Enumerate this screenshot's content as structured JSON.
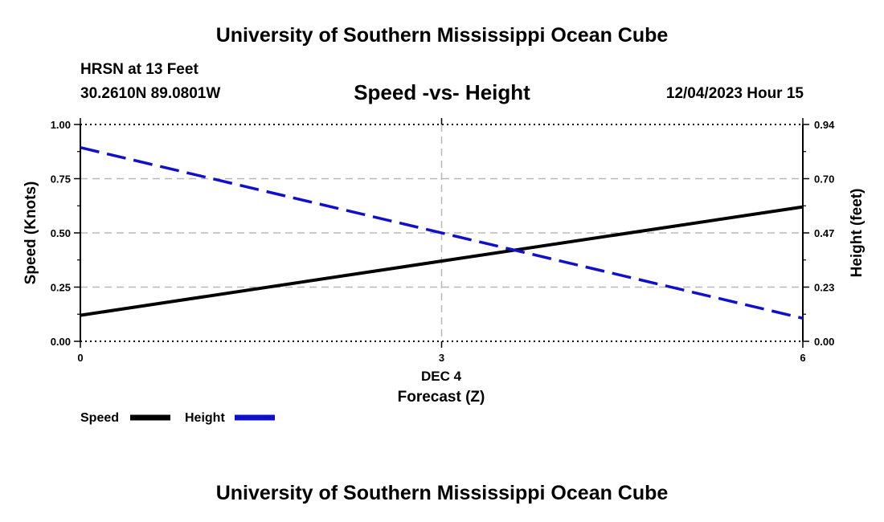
{
  "header": {
    "title": "University of Southern Mississippi Ocean Cube",
    "station": "HRSN at 13 Feet",
    "coords": "30.2610N  89.0801W",
    "chart_title": "Speed -vs- Height",
    "datetime": "12/04/2023 Hour 15"
  },
  "footer": {
    "title": "University of Southern Mississippi Ocean Cube"
  },
  "chart_data": {
    "type": "line",
    "title": "Speed -vs- Height",
    "xlabel": "Forecast (Z)",
    "xlabel_date": "DEC 4",
    "ylabel_left": "Speed (Knots)",
    "ylabel_right": "Height (feet)",
    "x_ticks": [
      0,
      3,
      6
    ],
    "xlim": [
      0,
      6
    ],
    "ylim_left": [
      0,
      1
    ],
    "ylim_right": [
      0,
      0.94
    ],
    "y_ticks_left": [
      "0.00",
      "0.25",
      "0.50",
      "0.75",
      "1.00"
    ],
    "y_ticks_right": [
      "0.00",
      "0.23",
      "0.47",
      "0.70",
      "0.94"
    ],
    "grid": true,
    "series": [
      {
        "name": "Speed",
        "axis": "left",
        "color": "#000000",
        "style": "solid",
        "x": [
          0,
          6
        ],
        "values": [
          0.12,
          0.62
        ]
      },
      {
        "name": "Height",
        "axis": "right",
        "color": "#1010cc",
        "style": "dashed",
        "x": [
          0,
          6
        ],
        "values": [
          0.84,
          0.1
        ]
      }
    ]
  }
}
